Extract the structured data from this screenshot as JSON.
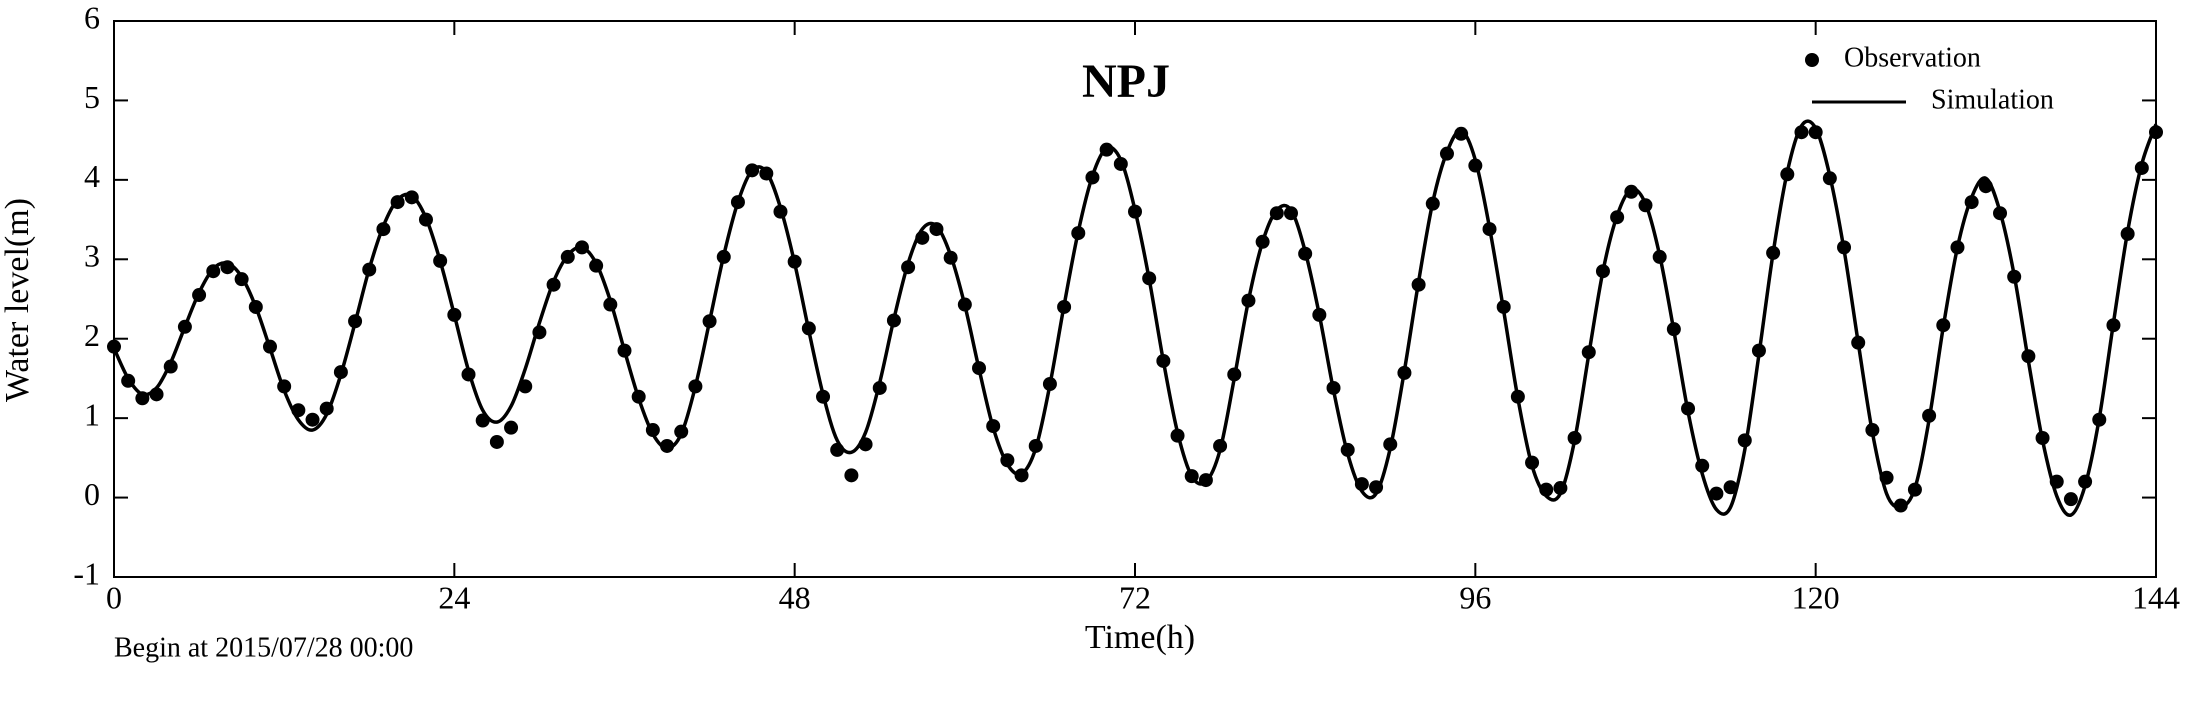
{
  "chart_data": {
    "type": "line",
    "title": "NPJ",
    "x_label": "Time(h)",
    "y_label": "Water level(m)",
    "note": "Begin at 2015/07/28 00:00",
    "x": [
      0,
      1,
      2,
      3,
      4,
      5,
      6,
      7,
      8,
      9,
      10,
      11,
      12,
      13,
      14,
      15,
      16,
      17,
      18,
      19,
      20,
      21,
      22,
      23,
      24,
      25,
      26,
      27,
      28,
      29,
      30,
      31,
      32,
      33,
      34,
      35,
      36,
      37,
      38,
      39,
      40,
      41,
      42,
      43,
      44,
      45,
      46,
      47,
      48,
      49,
      50,
      51,
      52,
      53,
      54,
      55,
      56,
      57,
      58,
      59,
      60,
      61,
      62,
      63,
      64,
      65,
      66,
      67,
      68,
      69,
      70,
      71,
      72,
      73,
      74,
      75,
      76,
      77,
      78,
      79,
      80,
      81,
      82,
      83,
      84,
      85,
      86,
      87,
      88,
      89,
      90,
      91,
      92,
      93,
      94,
      95,
      96,
      97,
      98,
      99,
      100,
      101,
      102,
      103,
      104,
      105,
      106,
      107,
      108,
      109,
      110,
      111,
      112,
      113,
      114,
      115,
      116,
      117,
      118,
      119,
      120,
      121,
      122,
      123,
      124,
      125,
      126,
      127,
      128,
      129,
      130,
      131,
      132,
      133,
      134,
      135,
      136,
      137,
      138,
      139,
      140,
      141,
      142,
      143,
      144
    ],
    "series": [
      {
        "name": "Observation",
        "style": "markers",
        "color": "#000000",
        "values": [
          1.9,
          1.47,
          1.25,
          1.3,
          1.65,
          2.15,
          2.55,
          2.85,
          2.9,
          2.75,
          2.4,
          1.9,
          1.4,
          1.1,
          0.98,
          1.12,
          1.58,
          2.22,
          2.87,
          3.38,
          3.72,
          3.78,
          3.5,
          2.98,
          2.3,
          1.55,
          0.97,
          0.7,
          0.88,
          1.4,
          2.08,
          2.68,
          3.03,
          3.15,
          2.92,
          2.43,
          1.85,
          1.27,
          0.85,
          0.65,
          0.83,
          1.4,
          2.22,
          3.03,
          3.72,
          4.12,
          4.08,
          3.6,
          2.97,
          2.13,
          1.27,
          0.6,
          0.28,
          0.67,
          1.38,
          2.23,
          2.9,
          3.27,
          3.38,
          3.02,
          2.43,
          1.63,
          0.9,
          0.47,
          0.28,
          0.65,
          1.43,
          2.4,
          3.33,
          4.03,
          4.38,
          4.2,
          3.6,
          2.76,
          1.72,
          0.78,
          0.27,
          0.22,
          0.65,
          1.55,
          2.48,
          3.22,
          3.58,
          3.58,
          3.07,
          2.3,
          1.38,
          0.6,
          0.17,
          0.13,
          0.67,
          1.57,
          2.68,
          3.7,
          4.33,
          4.58,
          4.18,
          3.38,
          2.4,
          1.27,
          0.44,
          0.1,
          0.12,
          0.75,
          1.83,
          2.85,
          3.53,
          3.85,
          3.68,
          3.03,
          2.12,
          1.12,
          0.4,
          0.05,
          0.13,
          0.72,
          1.85,
          3.08,
          4.07,
          4.6,
          4.6,
          4.02,
          3.15,
          1.95,
          0.85,
          0.25,
          -0.1,
          0.1,
          1.03,
          2.17,
          3.15,
          3.72,
          3.92,
          3.58,
          2.78,
          1.78,
          0.75,
          0.2,
          -0.02,
          0.2,
          0.98,
          2.17,
          3.32,
          4.15,
          4.6
        ]
      },
      {
        "name": "Simulation",
        "style": "line",
        "color": "#000000",
        "values": [
          1.88,
          1.5,
          1.3,
          1.38,
          1.7,
          2.15,
          2.58,
          2.88,
          2.95,
          2.78,
          2.4,
          1.88,
          1.35,
          0.98,
          0.85,
          1.05,
          1.55,
          2.2,
          2.88,
          3.42,
          3.75,
          3.8,
          3.52,
          2.98,
          2.3,
          1.6,
          1.1,
          0.95,
          1.15,
          1.62,
          2.2,
          2.72,
          3.05,
          3.15,
          2.95,
          2.48,
          1.85,
          1.25,
          0.8,
          0.62,
          0.8,
          1.4,
          2.22,
          3.05,
          3.72,
          4.12,
          4.1,
          3.65,
          2.95,
          2.1,
          1.3,
          0.72,
          0.57,
          0.82,
          1.45,
          2.25,
          2.95,
          3.38,
          3.42,
          3.05,
          2.42,
          1.62,
          0.88,
          0.42,
          0.3,
          0.62,
          1.42,
          2.42,
          3.35,
          4.05,
          4.4,
          4.25,
          3.62,
          2.75,
          1.72,
          0.82,
          0.27,
          0.2,
          0.6,
          1.5,
          2.48,
          3.22,
          3.62,
          3.62,
          3.1,
          2.3,
          1.35,
          0.55,
          0.08,
          0.05,
          0.62,
          1.6,
          2.72,
          3.72,
          4.35,
          4.62,
          4.25,
          3.4,
          2.35,
          1.25,
          0.4,
          0.02,
          0.05,
          0.72,
          1.8,
          2.85,
          3.55,
          3.88,
          3.7,
          3.05,
          2.1,
          1.08,
          0.3,
          -0.15,
          -0.12,
          0.6,
          1.8,
          3.08,
          4.1,
          4.68,
          4.65,
          4.05,
          3.12,
          1.95,
          0.82,
          0.05,
          -0.12,
          0.12,
          0.98,
          2.15,
          3.15,
          3.78,
          4.02,
          3.6,
          2.8,
          1.72,
          0.72,
          0.02,
          -0.22,
          0.15,
          1.0,
          2.2,
          3.35,
          4.2,
          4.7
        ]
      }
    ],
    "xlim": [
      0,
      144
    ],
    "xticks": [
      0,
      24,
      48,
      72,
      96,
      120,
      144
    ],
    "ylim": [
      -1,
      6
    ],
    "yticks": [
      -1,
      0,
      1,
      2,
      3,
      4,
      5,
      6
    ],
    "legend": "upper right"
  }
}
